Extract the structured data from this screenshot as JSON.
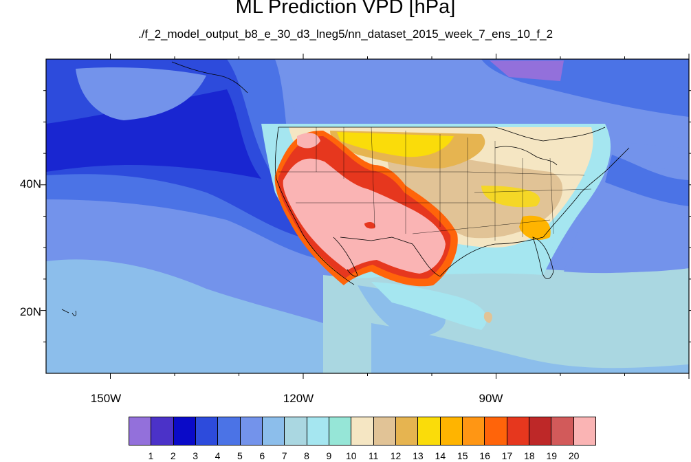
{
  "title": "ML Prediction VPD [hPa]",
  "subtitle": "./f_2_model_output_b8_e_30_d3_lneg5/nn_dataset_2015_week_7_ens_10_f_2",
  "map": {
    "projection": "cylindrical equidistant",
    "lon_range": [
      -160,
      -60
    ],
    "lat_range": [
      10,
      60
    ],
    "lon_ticks": [
      {
        "value": -150,
        "label": "150W"
      },
      {
        "value": -120,
        "label": "120W"
      },
      {
        "value": -90,
        "label": "90W"
      }
    ],
    "lat_ticks": [
      {
        "value": 40,
        "label": "40N"
      },
      {
        "value": 20,
        "label": "20N"
      }
    ],
    "features": [
      "coastlines",
      "US state boundaries",
      "national boundaries"
    ],
    "variable": "VPD",
    "units": "hPa",
    "regions": [
      {
        "name": "open Pacific",
        "approx_level": 3
      },
      {
        "name": "US Southwest / Mexico plateau",
        "approx_level": 20
      },
      {
        "name": "Northern Great Plains",
        "approx_level": 14
      },
      {
        "name": "Southeast US",
        "approx_level": 12
      },
      {
        "name": "Gulf of Mexico / Caribbean",
        "approx_level": 7
      }
    ]
  },
  "colorbar": {
    "labels": [
      "1",
      "2",
      "3",
      "4",
      "5",
      "6",
      "7",
      "8",
      "9",
      "10",
      "11",
      "12",
      "13",
      "14",
      "15",
      "16",
      "17",
      "18",
      "19",
      "20"
    ],
    "colors": [
      "#9370DB",
      "#4B32C8",
      "#0A0AC8",
      "#2D4BDC",
      "#4B73E6",
      "#7393EB",
      "#8CBEEB",
      "#AAD7E1",
      "#A5E6F0",
      "#96E6D7",
      "#F5E6C3",
      "#E1C396",
      "#E6B450",
      "#FADC0A",
      "#FFB400",
      "#FF9614",
      "#FF640A",
      "#E6371E",
      "#BE2828",
      "#D25A5A",
      "#FAB4B4"
    ]
  }
}
